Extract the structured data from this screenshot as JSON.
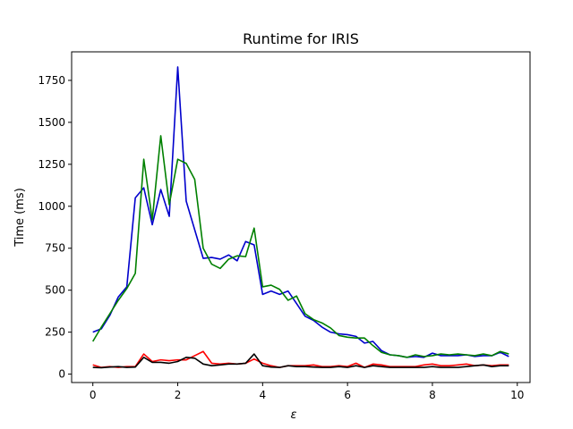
{
  "chart_data": {
    "type": "line",
    "title": "Runtime for IRIS",
    "xlabel": "ε",
    "ylabel": "Time (ms)",
    "xlim": [
      -0.5,
      10.3
    ],
    "ylim": [
      -50,
      1920
    ],
    "xticks": [
      0,
      2,
      4,
      6,
      8,
      10
    ],
    "xtick_labels": [
      "0",
      "2",
      "4",
      "6",
      "8",
      "10"
    ],
    "yticks": [
      0,
      250,
      500,
      750,
      1000,
      1250,
      1500,
      1750
    ],
    "ytick_labels": [
      "0",
      "250",
      "500",
      "750",
      "1000",
      "1250",
      "1500",
      "1750"
    ],
    "grid": false,
    "legend": "none",
    "x": [
      0.0,
      0.2,
      0.4,
      0.6,
      0.8,
      1.0,
      1.2,
      1.4,
      1.6,
      1.8,
      2.0,
      2.2,
      2.4,
      2.6,
      2.8,
      3.0,
      3.2,
      3.4,
      3.6,
      3.8,
      4.0,
      4.2,
      4.4,
      4.6,
      4.8,
      5.0,
      5.2,
      5.4,
      5.6,
      5.8,
      6.0,
      6.2,
      6.4,
      6.6,
      6.8,
      7.0,
      7.2,
      7.4,
      7.6,
      7.8,
      8.0,
      8.2,
      8.4,
      8.6,
      8.8,
      9.0,
      9.2,
      9.4,
      9.6,
      9.8
    ],
    "series": [
      {
        "color": "#0000cc",
        "values": [
          250,
          270,
          350,
          460,
          520,
          1050,
          1110,
          890,
          1100,
          940,
          1830,
          1030,
          860,
          690,
          695,
          685,
          710,
          675,
          790,
          770,
          475,
          495,
          475,
          495,
          420,
          345,
          320,
          280,
          250,
          240,
          235,
          225,
          185,
          195,
          140,
          115,
          110,
          100,
          105,
          100,
          125,
          110,
          110,
          110,
          115,
          105,
          110,
          110,
          130,
          105
        ]
      },
      {
        "color": "#008000",
        "values": [
          195,
          280,
          360,
          440,
          510,
          600,
          1280,
          920,
          1420,
          1010,
          1280,
          1255,
          1160,
          750,
          655,
          630,
          685,
          705,
          700,
          870,
          520,
          530,
          505,
          440,
          465,
          360,
          325,
          305,
          275,
          230,
          220,
          215,
          215,
          170,
          130,
          115,
          110,
          100,
          115,
          105,
          110,
          120,
          115,
          120,
          115,
          110,
          120,
          110,
          135,
          120
        ]
      },
      {
        "color": "#ff0000",
        "values": [
          55,
          40,
          45,
          40,
          45,
          45,
          120,
          75,
          85,
          80,
          85,
          85,
          110,
          135,
          65,
          60,
          65,
          60,
          65,
          90,
          65,
          50,
          40,
          50,
          50,
          50,
          55,
          45,
          45,
          50,
          45,
          65,
          40,
          60,
          55,
          45,
          45,
          45,
          45,
          55,
          60,
          50,
          50,
          55,
          60,
          50,
          55,
          50,
          55,
          55
        ]
      },
      {
        "color": "#000000",
        "values": [
          40,
          38,
          42,
          45,
          40,
          42,
          100,
          70,
          70,
          65,
          75,
          100,
          95,
          60,
          50,
          55,
          60,
          60,
          65,
          120,
          50,
          42,
          40,
          50,
          45,
          45,
          42,
          40,
          40,
          45,
          40,
          50,
          40,
          50,
          45,
          40,
          40,
          40,
          40,
          40,
          45,
          40,
          40,
          40,
          45,
          50,
          55,
          45,
          50,
          50
        ]
      }
    ]
  }
}
